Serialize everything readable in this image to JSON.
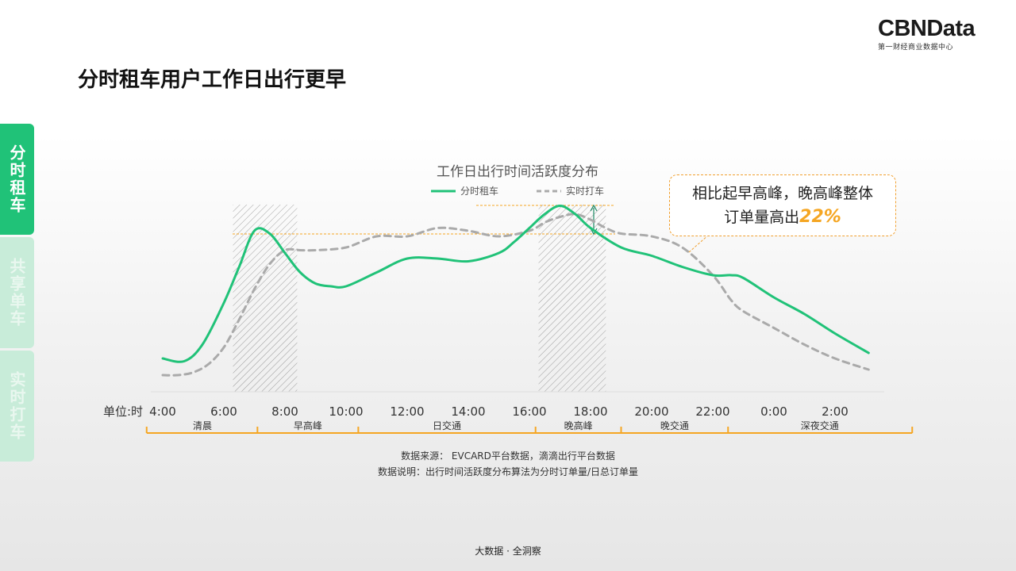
{
  "page": {
    "title": "分时租车用户工作日出行更早",
    "logo": {
      "name": "CBNData",
      "tagline": "第一财经商业数据中心"
    },
    "footer": "大数据 · 全洞察"
  },
  "side_tabs": [
    {
      "label": "分时租车",
      "active": true
    },
    {
      "label": "共享单车",
      "active": false
    },
    {
      "label": "实时打车",
      "active": false
    }
  ],
  "callout": {
    "text": "相比起早高峰，晚高峰整体",
    "text2": "订单量高出",
    "highlight": "22%"
  },
  "notes": {
    "source": "数据来源： EVCARD平台数据，滴滴出行平台数据",
    "explain": "数据说明：出行时间活跃度分布算法为分时订单量/日总订单量"
  },
  "colors": {
    "rental": "#20c278",
    "taxi": "#aaaaaa",
    "accent": "#f5a623",
    "tab_active": "#20c278",
    "tab_inactive": "#c8ecd9"
  },
  "chart_data": {
    "type": "line",
    "title": "工作日出行时间活跃度分布",
    "xlabel": "单位:时",
    "x_ticks": [
      "4:00",
      "6:00",
      "8:00",
      "10:00",
      "12:00",
      "14:00",
      "16:00",
      "18:00",
      "20:00",
      "22:00",
      "0:00",
      "2:00"
    ],
    "grid": false,
    "legend": "top-center",
    "shaded_periods": [
      {
        "label": "早高峰",
        "from": 6.3,
        "to": 8.4
      },
      {
        "label": "晚高峰",
        "from": 16.3,
        "to": 18.5
      }
    ],
    "periods": [
      {
        "label": "清晨",
        "from": 3.5,
        "to": 7.1
      },
      {
        "label": "早高峰",
        "from": 7.1,
        "to": 10.4
      },
      {
        "label": "日交通",
        "from": 10.4,
        "to": 16.2
      },
      {
        "label": "晚高峰",
        "from": 16.2,
        "to": 19.0
      },
      {
        "label": "晚交通",
        "from": 19.0,
        "to": 22.5
      },
      {
        "label": "深夜交通",
        "from": 22.5,
        "to": 28.5
      }
    ],
    "series": [
      {
        "name": "分时租车",
        "style": "solid",
        "x": [
          4,
          4.7,
          5.3,
          6,
          6.5,
          7,
          7.5,
          8,
          8.5,
          9,
          9.5,
          10,
          11,
          12,
          13,
          14,
          15,
          15.5,
          16,
          16.5,
          17,
          17.5,
          18,
          19,
          20,
          21,
          22,
          22.6,
          23,
          24,
          25,
          26,
          27.1
        ],
        "y": [
          0.12,
          0.11,
          0.17,
          0.32,
          0.45,
          0.58,
          0.57,
          0.5,
          0.43,
          0.39,
          0.38,
          0.38,
          0.43,
          0.48,
          0.48,
          0.47,
          0.5,
          0.54,
          0.59,
          0.64,
          0.67,
          0.64,
          0.59,
          0.52,
          0.49,
          0.45,
          0.42,
          0.42,
          0.41,
          0.34,
          0.28,
          0.21,
          0.14
        ]
      },
      {
        "name": "实时打车",
        "style": "dashed",
        "x": [
          4,
          4.5,
          5,
          5.5,
          6,
          6.5,
          7,
          7.5,
          8,
          8.5,
          9,
          10,
          11,
          12,
          13,
          14,
          15,
          16,
          16.5,
          17,
          17.5,
          18,
          18.5,
          19,
          20,
          21,
          22,
          22.6,
          23,
          24,
          25,
          26,
          27.1
        ],
        "y": [
          0.06,
          0.06,
          0.07,
          0.1,
          0.16,
          0.26,
          0.37,
          0.46,
          0.51,
          0.51,
          0.51,
          0.52,
          0.56,
          0.56,
          0.59,
          0.58,
          0.56,
          0.58,
          0.61,
          0.63,
          0.64,
          0.62,
          0.59,
          0.57,
          0.56,
          0.52,
          0.42,
          0.33,
          0.29,
          0.23,
          0.17,
          0.12,
          0.08
        ]
      }
    ]
  }
}
